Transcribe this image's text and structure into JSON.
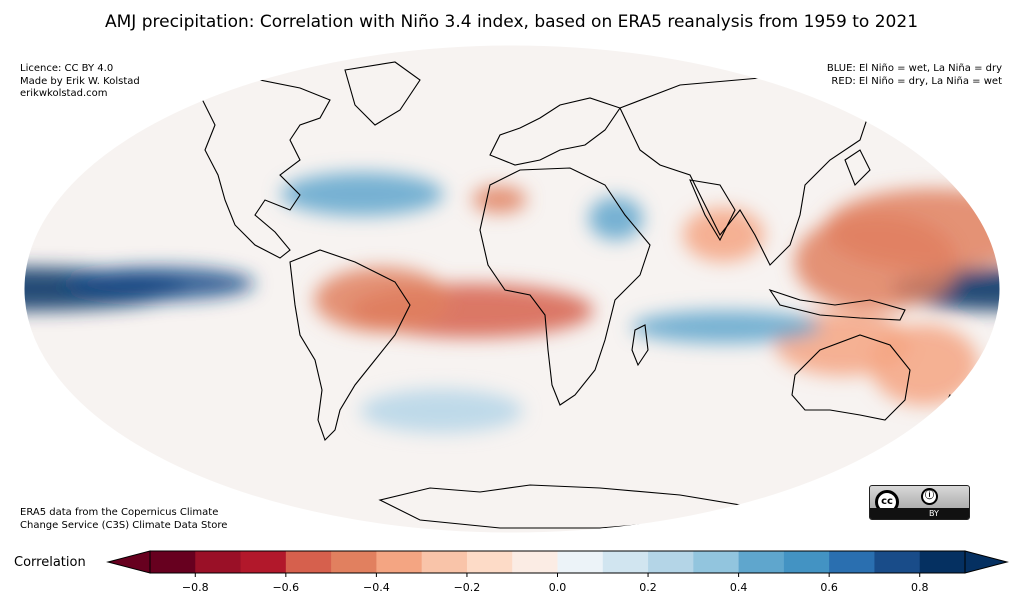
{
  "title": "AMJ precipitation: Correlation with Niño 3.4 index, based on ERA5 reanalysis from 1959 to 2021",
  "licence_lines": [
    "Licence: CC BY 4.0",
    "Made by Erik W. Kolstad",
    "erikwkolstad.com"
  ],
  "legend_lines": [
    "BLUE: El Niño = wet, La Niña = dry",
    "RED: El Niño = dry, La Niña = wet"
  ],
  "source_lines": [
    "ERA5 data from the Copernicus Climate",
    "Change Service (C3S) Climate Data Store"
  ],
  "badge": {
    "left": "cc",
    "right": "BY"
  },
  "colorbar": {
    "label": "Correlation",
    "min": -0.9,
    "max": 0.9,
    "step": 0.1,
    "ticks": [
      -0.8,
      -0.6,
      -0.4,
      -0.2,
      0.0,
      0.2,
      0.4,
      0.6,
      0.8
    ],
    "tick_labels": [
      "−0.8",
      "−0.6",
      "−0.4",
      "−0.2",
      "0.0",
      "0.2",
      "0.4",
      "0.6",
      "0.8"
    ],
    "extend": "both",
    "colors": [
      "#67001f",
      "#9a1027",
      "#b2182b",
      "#d6604d",
      "#e1805f",
      "#f4a582",
      "#f9c4a9",
      "#fddbc7",
      "#fbece4",
      "#ecf3f8",
      "#d1e5f0",
      "#b4d5e7",
      "#92c5de",
      "#5fa6cd",
      "#4393c3",
      "#2a6fb0",
      "#194c89",
      "#053061"
    ]
  },
  "map": {
    "projection": "mollweide",
    "field": "correlation of AMJ precipitation with Niño 3.4 index",
    "features": [
      {
        "lat": 0,
        "lon": -180,
        "w": 60,
        "h": 8,
        "value": 0.85
      },
      {
        "lat": 0,
        "lon": 180,
        "w": 40,
        "h": 8,
        "value": 0.85
      },
      {
        "lat": 2,
        "lon": -130,
        "w": 35,
        "h": 6,
        "value": 0.7
      },
      {
        "lat": -8,
        "lon": -15,
        "w": 45,
        "h": 10,
        "value": -0.55
      },
      {
        "lat": -4,
        "lon": -48,
        "w": 25,
        "h": 12,
        "value": -0.45
      },
      {
        "lat": 10,
        "lon": 135,
        "w": 30,
        "h": 18,
        "value": -0.5
      },
      {
        "lat": 22,
        "lon": 160,
        "w": 40,
        "h": 15,
        "value": -0.45
      },
      {
        "lat": -20,
        "lon": 125,
        "w": 25,
        "h": 12,
        "value": -0.4
      },
      {
        "lat": -28,
        "lon": 160,
        "w": 20,
        "h": 15,
        "value": -0.35
      },
      {
        "lat": -14,
        "lon": 80,
        "w": 35,
        "h": 6,
        "value": 0.45
      },
      {
        "lat": 26,
        "lon": 40,
        "w": 10,
        "h": 8,
        "value": 0.45
      },
      {
        "lat": 35,
        "lon": -60,
        "w": 30,
        "h": 8,
        "value": 0.4
      },
      {
        "lat": 33,
        "lon": -5,
        "w": 10,
        "h": 5,
        "value": -0.5
      },
      {
        "lat": 20,
        "lon": 80,
        "w": 15,
        "h": 10,
        "value": -0.35
      },
      {
        "lat": -45,
        "lon": -30,
        "w": 30,
        "h": 8,
        "value": 0.3
      }
    ]
  }
}
